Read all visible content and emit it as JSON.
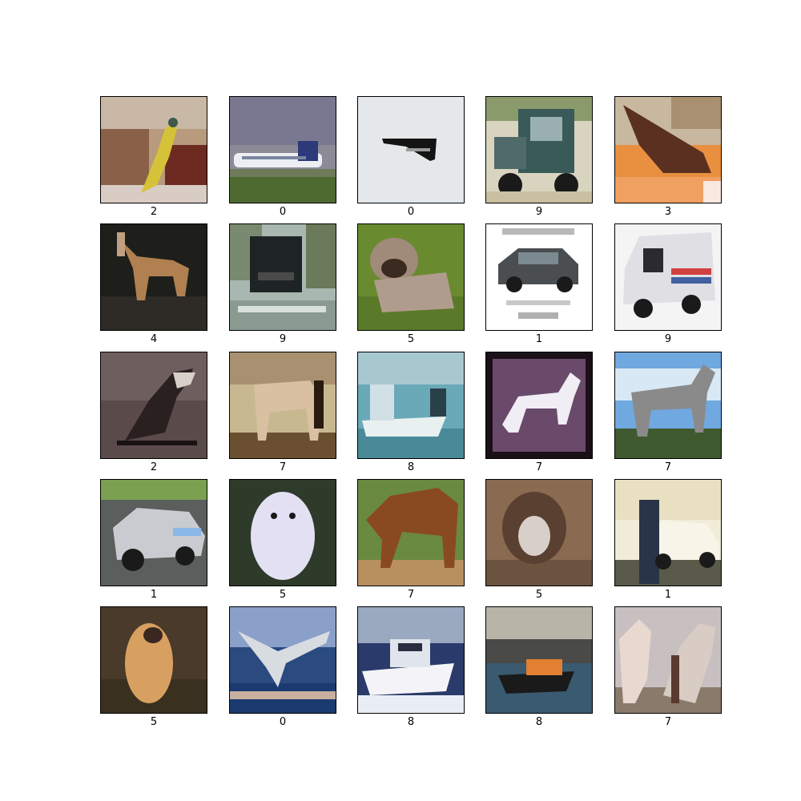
{
  "grid": {
    "rows": 5,
    "cols": 5,
    "images": [
      {
        "label": "2",
        "subject": "bird"
      },
      {
        "label": "0",
        "subject": "airplane"
      },
      {
        "label": "0",
        "subject": "airplane"
      },
      {
        "label": "9",
        "subject": "truck"
      },
      {
        "label": "3",
        "subject": "cat"
      },
      {
        "label": "4",
        "subject": "deer"
      },
      {
        "label": "9",
        "subject": "truck"
      },
      {
        "label": "5",
        "subject": "dog"
      },
      {
        "label": "1",
        "subject": "automobile"
      },
      {
        "label": "9",
        "subject": "truck"
      },
      {
        "label": "2",
        "subject": "bird"
      },
      {
        "label": "7",
        "subject": "horse"
      },
      {
        "label": "8",
        "subject": "ship"
      },
      {
        "label": "7",
        "subject": "horse"
      },
      {
        "label": "7",
        "subject": "horse"
      },
      {
        "label": "1",
        "subject": "automobile"
      },
      {
        "label": "5",
        "subject": "dog"
      },
      {
        "label": "7",
        "subject": "horse"
      },
      {
        "label": "5",
        "subject": "dog"
      },
      {
        "label": "1",
        "subject": "automobile"
      },
      {
        "label": "5",
        "subject": "dog"
      },
      {
        "label": "0",
        "subject": "airplane"
      },
      {
        "label": "8",
        "subject": "ship"
      },
      {
        "label": "8",
        "subject": "ship"
      },
      {
        "label": "7",
        "subject": "horse"
      }
    ]
  }
}
